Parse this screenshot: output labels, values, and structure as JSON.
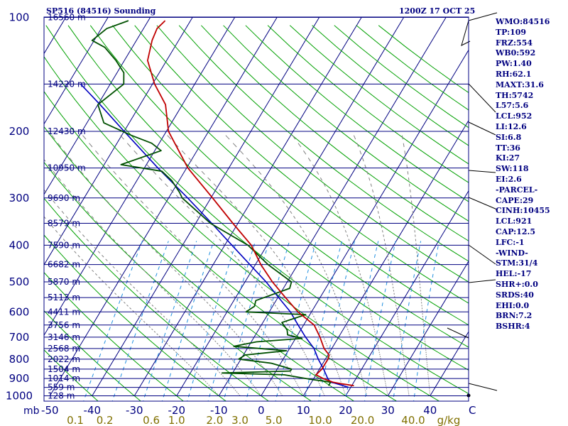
{
  "header": {
    "station": "SP516 (84516) Sounding",
    "time": "1200Z 17 OCT 25"
  },
  "chart_data": {
    "type": "skew-t",
    "title": "SP516 (84516) Sounding",
    "valid_time": "1200Z 17 OCT 25",
    "pressure_unit_label": "mb",
    "mixing_ratio_unit_label": "g/kg",
    "pressure_axis": {
      "range_hpa": [
        1000,
        100
      ],
      "scale": "log",
      "tick_labels": [
        {
          "p": 100,
          "label": "100"
        },
        {
          "p": 200,
          "label": "200"
        },
        {
          "p": 300,
          "label": "300"
        },
        {
          "p": 400,
          "label": "400"
        },
        {
          "p": 500,
          "label": "500"
        },
        {
          "p": 600,
          "label": "600"
        },
        {
          "p": 700,
          "label": "700"
        },
        {
          "p": 800,
          "label": "800"
        },
        {
          "p": 900,
          "label": "900"
        },
        {
          "p": 1000,
          "label": "1000"
        }
      ]
    },
    "temperature_axis": {
      "range_c": [
        -50,
        50
      ],
      "tick_labels": [
        {
          "t": -50,
          "label": "-50"
        },
        {
          "t": -40,
          "label": "-40"
        },
        {
          "t": -30,
          "label": "-30"
        },
        {
          "t": -20,
          "label": "-20"
        },
        {
          "t": -10,
          "label": "-10"
        },
        {
          "t": 0,
          "label": "0"
        },
        {
          "t": 10,
          "label": "10"
        },
        {
          "t": 20,
          "label": "20"
        },
        {
          "t": 30,
          "label": "30"
        },
        {
          "t": 40,
          "label": "40"
        },
        {
          "t": 50,
          "label": "C"
        }
      ]
    },
    "mixing_ratio_labels": [
      {
        "t": -44,
        "label": "0.1"
      },
      {
        "t": -37,
        "label": "0.2"
      },
      {
        "t": -26,
        "label": "0.6"
      },
      {
        "t": -20,
        "label": "1.0"
      },
      {
        "t": -11,
        "label": "2.0"
      },
      {
        "t": -5,
        "label": "3.0"
      },
      {
        "t": 3,
        "label": "5.0"
      },
      {
        "t": 14,
        "label": "10.0"
      },
      {
        "t": 24,
        "label": "20.0"
      },
      {
        "t": 36,
        "label": "40.0"
      }
    ],
    "heights": [
      {
        "p": 1000,
        "label": "128 m"
      },
      {
        "p": 950,
        "label": "559 m"
      },
      {
        "p": 900,
        "label": "1014 m"
      },
      {
        "p": 850,
        "label": "1504 m"
      },
      {
        "p": 800,
        "label": "2022 m"
      },
      {
        "p": 750,
        "label": "2568 m"
      },
      {
        "p": 700,
        "label": "3146 m"
      },
      {
        "p": 650,
        "label": "3756 m"
      },
      {
        "p": 600,
        "label": "4411 m"
      },
      {
        "p": 550,
        "label": "5113 m"
      },
      {
        "p": 500,
        "label": "5870 m"
      },
      {
        "p": 450,
        "label": "6682 m"
      },
      {
        "p": 400,
        "label": "7590 m"
      },
      {
        "p": 350,
        "label": "8579 m"
      },
      {
        "p": 300,
        "label": "9690 m"
      },
      {
        "p": 250,
        "label": "10950 m"
      },
      {
        "p": 200,
        "label": "12430 m"
      },
      {
        "p": 150,
        "label": "14220 m"
      },
      {
        "p": 100,
        "label": "16560 m"
      }
    ],
    "temperature_profile": [
      {
        "p": 940,
        "t": 20.5
      },
      {
        "p": 930,
        "t": 17.5
      },
      {
        "p": 920,
        "t": 15.0
      },
      {
        "p": 900,
        "t": 12.2
      },
      {
        "p": 880,
        "t": 10.0
      },
      {
        "p": 850,
        "t": 10.6
      },
      {
        "p": 800,
        "t": 10.6
      },
      {
        "p": 780,
        "t": 10.3
      },
      {
        "p": 750,
        "t": 8.2
      },
      {
        "p": 700,
        "t": 5.6
      },
      {
        "p": 650,
        "t": 2.5
      },
      {
        "p": 600,
        "t": -3.2
      },
      {
        "p": 550,
        "t": -8.2
      },
      {
        "p": 500,
        "t": -13.5
      },
      {
        "p": 450,
        "t": -18.7
      },
      {
        "p": 400,
        "t": -23.7
      },
      {
        "p": 350,
        "t": -31.2
      },
      {
        "p": 300,
        "t": -39.6
      },
      {
        "p": 250,
        "t": -49.7
      },
      {
        "p": 200,
        "t": -59.5
      },
      {
        "p": 170,
        "t": -64.0
      },
      {
        "p": 150,
        "t": -69.5
      },
      {
        "p": 130,
        "t": -74.5
      },
      {
        "p": 115,
        "t": -76.3
      },
      {
        "p": 107,
        "t": -76.8
      },
      {
        "p": 102,
        "t": -76.0
      }
    ],
    "dewpoint_profile": [
      {
        "p": 940,
        "t": 14.5
      },
      {
        "p": 920,
        "t": 14.5
      },
      {
        "p": 905,
        "t": 9.5
      },
      {
        "p": 880,
        "t": 2.5
      },
      {
        "p": 870,
        "t": -12.5
      },
      {
        "p": 860,
        "t": 3.4
      },
      {
        "p": 850,
        "t": 3.4
      },
      {
        "p": 820,
        "t": -2.2
      },
      {
        "p": 800,
        "t": -10.5
      },
      {
        "p": 780,
        "t": -9.6
      },
      {
        "p": 760,
        "t": -0.4
      },
      {
        "p": 740,
        "t": -13.5
      },
      {
        "p": 720,
        "t": -8.8
      },
      {
        "p": 705,
        "t": 1.5
      },
      {
        "p": 690,
        "t": -2.4
      },
      {
        "p": 670,
        "t": -3.2
      },
      {
        "p": 640,
        "t": -5.5
      },
      {
        "p": 610,
        "t": -1.0
      },
      {
        "p": 600,
        "t": -15.5
      },
      {
        "p": 580,
        "t": -14.3
      },
      {
        "p": 560,
        "t": -14.8
      },
      {
        "p": 520,
        "t": -8.5
      },
      {
        "p": 500,
        "t": -9.0
      },
      {
        "p": 450,
        "t": -17.0
      },
      {
        "p": 400,
        "t": -24.5
      },
      {
        "p": 350,
        "t": -36.5
      },
      {
        "p": 320,
        "t": -42.5
      },
      {
        "p": 300,
        "t": -46.8
      },
      {
        "p": 290,
        "t": -48.2
      },
      {
        "p": 270,
        "t": -51.7
      },
      {
        "p": 255,
        "t": -55.4
      },
      {
        "p": 245,
        "t": -66.0
      },
      {
        "p": 225,
        "t": -58.5
      },
      {
        "p": 215,
        "t": -61.8
      },
      {
        "p": 205,
        "t": -67.7
      },
      {
        "p": 190,
        "t": -76.0
      },
      {
        "p": 170,
        "t": -80.0
      },
      {
        "p": 150,
        "t": -76.8
      },
      {
        "p": 140,
        "t": -78.4
      },
      {
        "p": 130,
        "t": -82.0
      },
      {
        "p": 120,
        "t": -86.5
      },
      {
        "p": 115,
        "t": -90.5
      },
      {
        "p": 107,
        "t": -88.7
      },
      {
        "p": 102,
        "t": -84.7
      }
    ],
    "parcel_path": [
      {
        "p": 950,
        "t": 19.5
      },
      {
        "p": 940,
        "t": 18.0
      },
      {
        "p": 925,
        "t": 15.5
      },
      {
        "p": 921,
        "t": 14.5
      },
      {
        "p": 900,
        "t": 13.3
      },
      {
        "p": 850,
        "t": 11.0
      },
      {
        "p": 800,
        "t": 8.3
      },
      {
        "p": 750,
        "t": 5.8
      },
      {
        "p": 700,
        "t": 2.2
      },
      {
        "p": 650,
        "t": -1.3
      },
      {
        "p": 600,
        "t": -5.0
      },
      {
        "p": 550,
        "t": -9.8
      },
      {
        "p": 500,
        "t": -15.0
      },
      {
        "p": 450,
        "t": -21.3
      },
      {
        "p": 400,
        "t": -28.3
      },
      {
        "p": 350,
        "t": -36.2
      },
      {
        "p": 300,
        "t": -45.5
      },
      {
        "p": 250,
        "t": -56.8
      },
      {
        "p": 200,
        "t": -70.0
      },
      {
        "p": 170,
        "t": -79.5
      },
      {
        "p": 150,
        "t": -87.0
      }
    ]
  },
  "indices": [
    "WMO:84516",
    "TP:109",
    "FRZ:554",
    "WB0:592",
    "PW:1.40",
    "RH:62.1",
    "MAXT:31.6",
    "TH:5742",
    "L57:5.6",
    "LCL:952",
    "LI:12.6",
    "SI:6.8",
    "TT:36",
    "KI:27",
    "SW:118",
    "EI:2.6",
    "-PARCEL-",
    "CAPE:29",
    "CINH:10455",
    "LCL:921",
    "CAP:12.5",
    "LFC:-1",
    "-WIND-",
    "STM:31/4",
    "HEL:-17",
    "SHR+:0.0",
    "SRDS:40",
    "EHI:0.0",
    "BRN:7.2",
    "BSHR:4"
  ],
  "colors": {
    "frame": "#000080",
    "isobar": "#000080",
    "isotherm": "#000080",
    "dry_adiabat": "#00a000",
    "moist_adiabat": "#808080",
    "mixing_ratio": "#2090e0",
    "temperature": "#c00000",
    "dewpoint": "#005000",
    "parcel": "#0000c0",
    "height_text": "#000080",
    "axis_text": "#000080",
    "mixing_text": "#807000",
    "wind_barb": "#000000"
  }
}
